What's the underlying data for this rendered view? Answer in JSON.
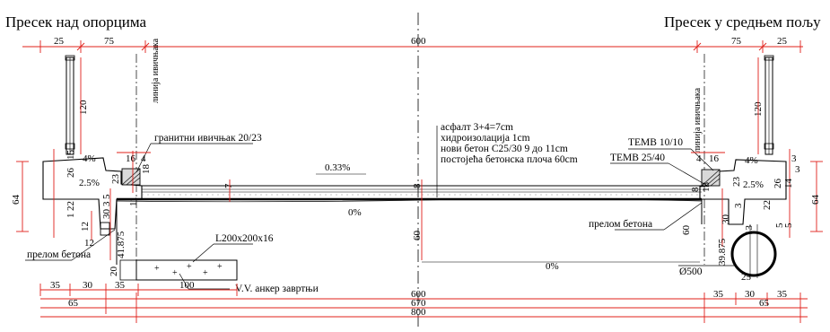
{
  "titles": {
    "left": "Пресек над опорцима",
    "right": "Пресек у средњем пољу"
  },
  "notes": {
    "curb_line": "линија ивичњака",
    "granite_curb": "гранитни ивичњак 20/23",
    "layers": [
      "асфалт 3+4=7cm",
      "хидроизолација 1cm",
      "нови бетон C25/30  9 до 11cm",
      "постојећа бетонска плоча 60cm"
    ],
    "temb_small": "TEMB 10/10",
    "temb_large": "TEMB 25/40",
    "concrete_break": "прелом бетона",
    "angle": "L200x200x16",
    "anchor_bolts": "V.V.  анкер завртњи",
    "pipe": "Ø500"
  },
  "slopes": {
    "left_sidewalk": "4%",
    "left_lane": "2.5%",
    "deck": "0.33%",
    "slab_top": "0%",
    "slab_bottom": "0%",
    "right_sidewalk": "4%",
    "right_lane": "2.5%"
  },
  "dims": {
    "top_left_25": "25",
    "top_left_75": "75",
    "top_600": "600",
    "top_right_75": "75",
    "top_right_25": "25",
    "rail_left_120": "120",
    "rail_right_120": "120",
    "left_16": "16",
    "left_4": "4",
    "left_26": "26",
    "left_15": "15",
    "left_18": "18",
    "left_23": "23",
    "left_64": "64",
    "left_22": "22",
    "left_1": "1",
    "left_12a": "12",
    "left_12b": "12",
    "left_30": "30",
    "left_3": "3",
    "left_5": "5",
    "left_11": "11",
    "left_41875": "41.875",
    "left_20": "20",
    "mid_7": "7",
    "mid_8": "8",
    "mid_60": "60",
    "right_4": "4",
    "right_16": "16",
    "right_3a": "3",
    "right_3b": "3",
    "right_26": "26",
    "right_14": "14",
    "right_18": "18",
    "right_8": "8",
    "right_23": "23",
    "right_64": "64",
    "right_22": "22",
    "right_3": "3",
    "right_5a": "5",
    "right_5b": "5",
    "right_30": "30",
    "right_13": "13",
    "right_60": "60",
    "right_39875": "39.875",
    "right_25": "25",
    "bot_35a": "35",
    "bot_30": "30",
    "bot_35b": "35",
    "bot_100": "100",
    "bot_65_left": "65",
    "bot_600": "600",
    "bot_670": "670",
    "bot_800": "800",
    "bot_r35a": "35",
    "bot_r30": "30",
    "bot_r35b": "35",
    "bot_65_right": "65"
  }
}
